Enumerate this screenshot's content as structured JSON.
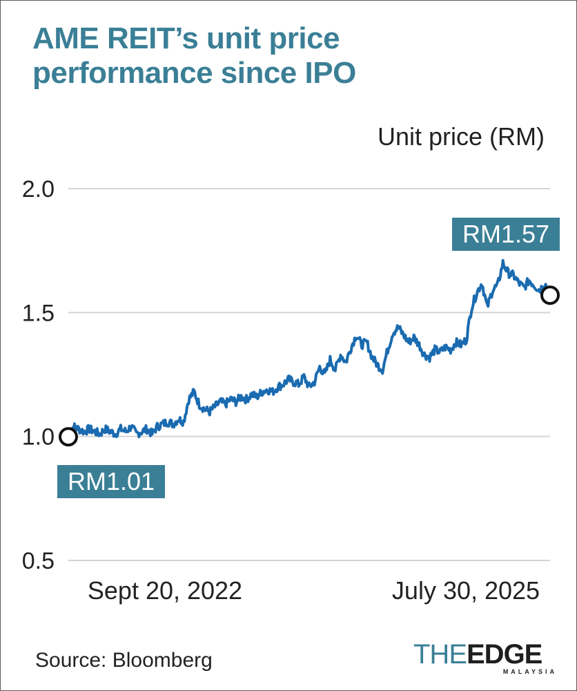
{
  "title_line1": "AME REIT’s unit price",
  "title_line2": "performance since IPO",
  "source": "Source: Bloomberg",
  "logo": {
    "the": "THE",
    "edge": "EDGE",
    "sub": "MALAYSIA"
  },
  "colors": {
    "line": "#1a6bb0",
    "title": "#3a7f96",
    "callout_bg": "#3a7f96",
    "grid": "#d4d4d4"
  },
  "chart_data": {
    "type": "line",
    "title": "AME REIT’s unit price performance since IPO",
    "ylabel": "Unit price (RM)",
    "xlabel": "",
    "ylim": [
      0.5,
      2.0
    ],
    "yticks": [
      0.5,
      1.0,
      1.5,
      2.0
    ],
    "ytick_labels": [
      "0.5",
      "1.0",
      "1.5",
      "2.0"
    ],
    "x_start_label": "Sept 20, 2022",
    "x_end_label": "July 30, 2025",
    "grid": true,
    "annotations": [
      {
        "label": "RM1.01",
        "value": 1.01,
        "at": "start"
      },
      {
        "label": "RM1.57",
        "value": 1.57,
        "at": "end"
      }
    ],
    "series": [
      {
        "values": [
          1.01,
          1.04,
          1.03,
          1.02,
          1.03,
          1.02,
          1.01,
          1.03,
          1.02,
          1.01,
          1.03,
          1.02,
          1.04,
          1.01,
          1.02,
          1.03,
          1.01,
          1.04,
          1.05,
          1.06,
          1.05,
          1.07,
          1.06,
          1.15,
          1.18,
          1.13,
          1.11,
          1.1,
          1.12,
          1.14,
          1.13,
          1.15,
          1.14,
          1.16,
          1.15,
          1.17,
          1.16,
          1.18,
          1.19,
          1.18,
          1.2,
          1.21,
          1.23,
          1.22,
          1.21,
          1.24,
          1.2,
          1.22,
          1.28,
          1.25,
          1.31,
          1.27,
          1.33,
          1.3,
          1.36,
          1.41,
          1.37,
          1.38,
          1.32,
          1.29,
          1.27,
          1.35,
          1.42,
          1.44,
          1.41,
          1.38,
          1.4,
          1.37,
          1.33,
          1.32,
          1.35,
          1.34,
          1.36,
          1.35,
          1.38,
          1.37,
          1.39,
          1.52,
          1.58,
          1.62,
          1.52,
          1.59,
          1.61,
          1.7,
          1.66,
          1.65,
          1.62,
          1.6,
          1.63,
          1.61,
          1.59,
          1.62,
          1.57
        ]
      }
    ]
  }
}
